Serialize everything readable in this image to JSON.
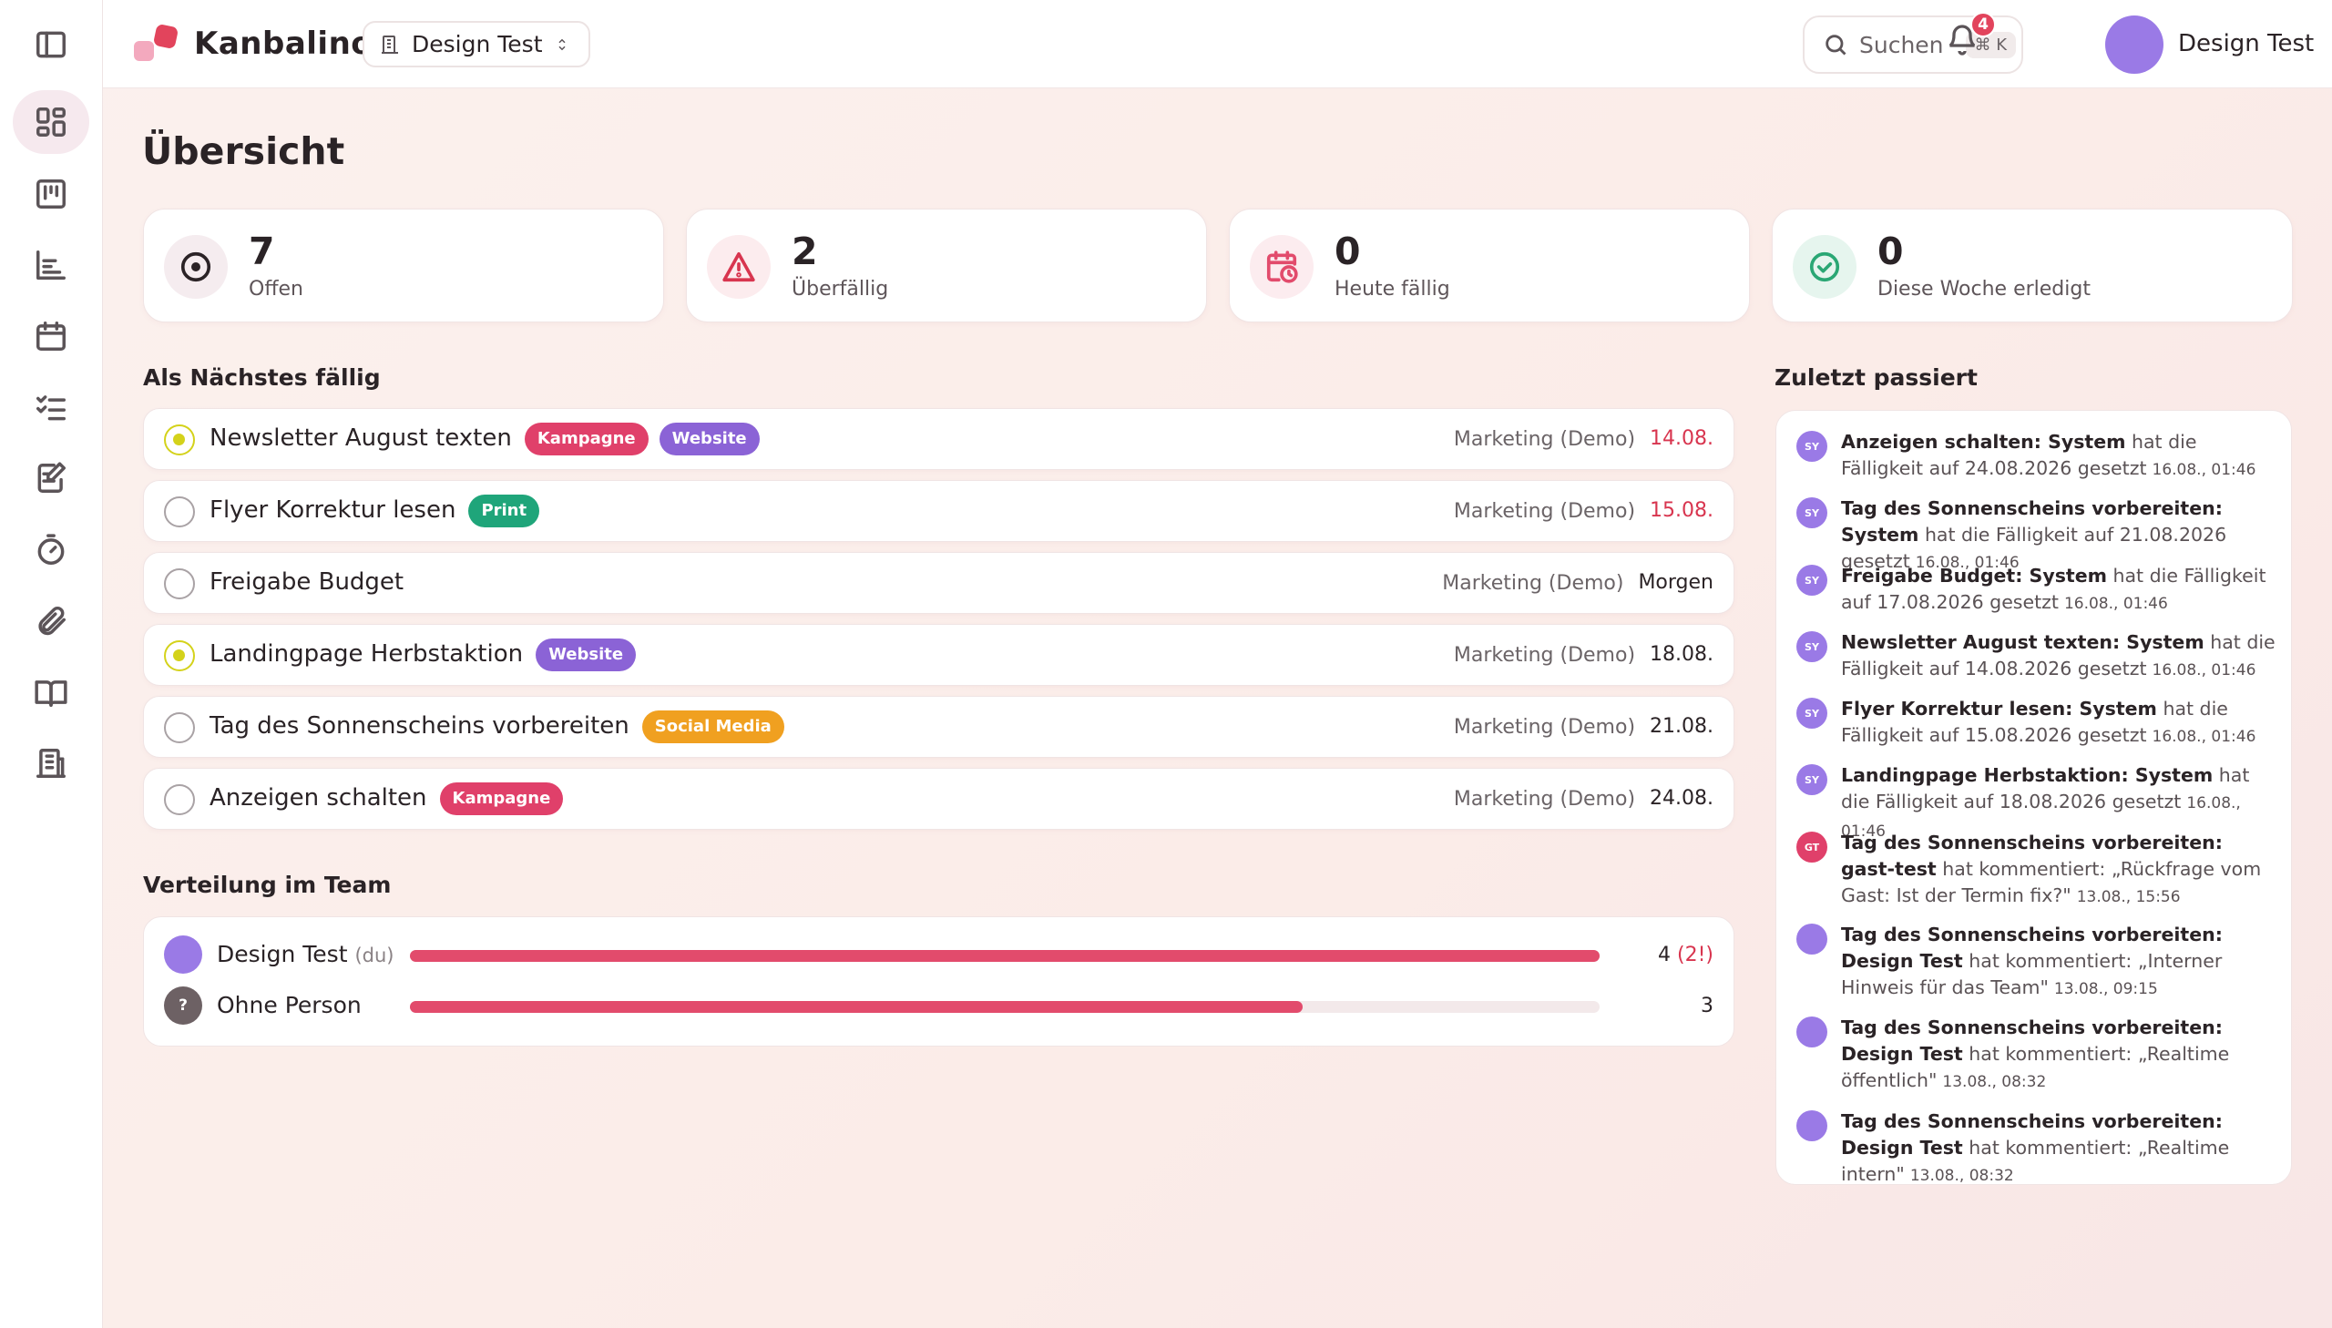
{
  "app": {
    "name": "Kanbalino"
  },
  "workspace": {
    "name": "Design Test"
  },
  "search": {
    "label": "Suchen",
    "shortcut": "⌘ K"
  },
  "notifications": {
    "count": "4"
  },
  "user": {
    "name": "Design Test",
    "avatar_color": "#9a7ae6"
  },
  "sidebar": {
    "items": [
      {
        "icon": "dashboard-icon",
        "active": true
      },
      {
        "icon": "board-icon"
      },
      {
        "icon": "chart-icon"
      },
      {
        "icon": "calendar-icon"
      },
      {
        "icon": "checklist-icon"
      },
      {
        "icon": "notes-icon"
      },
      {
        "icon": "timer-icon"
      },
      {
        "icon": "attachment-icon"
      },
      {
        "icon": "book-icon"
      },
      {
        "icon": "building-icon"
      }
    ]
  },
  "page": {
    "title": "Übersicht"
  },
  "stats": [
    {
      "value": "7",
      "label": "Offen",
      "icon": "target-icon",
      "color": "#2b2326",
      "bg": "#f5ecef"
    },
    {
      "value": "2",
      "label": "Überfällig",
      "icon": "warning-icon",
      "color": "#d8354f",
      "bg": "#fcecee"
    },
    {
      "value": "0",
      "label": "Heute fällig",
      "icon": "calendar-clock-icon",
      "color": "#e24b6c",
      "bg": "#fcecef"
    },
    {
      "value": "0",
      "label": "Diese Woche erledigt",
      "icon": "check-circle-icon",
      "color": "#2aa774",
      "bg": "#e6f5ee"
    }
  ],
  "next_due": {
    "title": "Als Nächstes fällig",
    "tasks": [
      {
        "title": "Newsletter August texten",
        "status": "progress",
        "tags": [
          {
            "label": "Kampagne",
            "color": "#e0406a"
          },
          {
            "label": "Website",
            "color": "#8b63d6"
          }
        ],
        "project": "Marketing (Demo)",
        "due": "14.08.",
        "overdue": true
      },
      {
        "title": "Flyer Korrektur lesen",
        "status": "open",
        "tags": [
          {
            "label": "Print",
            "color": "#1fa57a"
          }
        ],
        "project": "Marketing (Demo)",
        "due": "15.08.",
        "overdue": true
      },
      {
        "title": "Freigabe Budget",
        "status": "open",
        "tags": [],
        "project": "Marketing (Demo)",
        "due": "Morgen",
        "overdue": false
      },
      {
        "title": "Landingpage Herbstaktion",
        "status": "progress",
        "tags": [
          {
            "label": "Website",
            "color": "#8b63d6"
          }
        ],
        "project": "Marketing (Demo)",
        "due": "18.08.",
        "overdue": false
      },
      {
        "title": "Tag des Sonnenscheins vorbereiten",
        "status": "open",
        "tags": [
          {
            "label": "Social Media",
            "color": "#f0a020"
          }
        ],
        "project": "Marketing (Demo)",
        "due": "21.08.",
        "overdue": false
      },
      {
        "title": "Anzeigen schalten",
        "status": "open",
        "tags": [
          {
            "label": "Kampagne",
            "color": "#e0406a"
          }
        ],
        "project": "Marketing (Demo)",
        "due": "24.08.",
        "overdue": false
      }
    ]
  },
  "team": {
    "title": "Verteilung im Team",
    "members": [
      {
        "name": "Design Test",
        "suffix": "(du)",
        "avatar_label": "",
        "avatar_color": "#9a7ae6",
        "count": "4",
        "overdue": "(2!)",
        "share": 1.0
      },
      {
        "name": "Ohne Person",
        "suffix": "",
        "avatar_label": "?",
        "avatar_color": "#6d6164",
        "count": "3",
        "overdue": "",
        "share": 0.75
      }
    ]
  },
  "activity": {
    "title": "Zuletzt passiert",
    "items": [
      {
        "avatar": "SY",
        "color": "#9a7ae6",
        "subject": "Anzeigen schalten: System",
        "text": "hat die Fälligkeit auf 24.08.2026 gesetzt",
        "time": "16.08., 01:46"
      },
      {
        "avatar": "SY",
        "color": "#9a7ae6",
        "subject": "Tag des Sonnenscheins vorbereiten: System",
        "text": "hat die Fälligkeit auf 21.08.2026 gesetzt",
        "time": "16.08., 01:46"
      },
      {
        "avatar": "SY",
        "color": "#9a7ae6",
        "subject": "Freigabe Budget: System",
        "text": "hat die Fälligkeit auf 17.08.2026 gesetzt",
        "time": "16.08., 01:46"
      },
      {
        "avatar": "SY",
        "color": "#9a7ae6",
        "subject": "Newsletter August texten: System",
        "text": "hat die Fälligkeit auf 14.08.2026 gesetzt",
        "time": "16.08., 01:46"
      },
      {
        "avatar": "SY",
        "color": "#9a7ae6",
        "subject": "Flyer Korrektur lesen: System",
        "text": "hat die Fälligkeit auf 15.08.2026 gesetzt",
        "time": "16.08., 01:46"
      },
      {
        "avatar": "SY",
        "color": "#9a7ae6",
        "subject": "Landingpage Herbstaktion: System",
        "text": "hat die Fälligkeit auf 18.08.2026 gesetzt",
        "time": "16.08., 01:46"
      },
      {
        "avatar": "GT",
        "color": "#e0406a",
        "subject": "Tag des Sonnenscheins vorbereiten: gast-test",
        "text": "hat kommentiert: „Rückfrage vom Gast: Ist der Termin fix?\"",
        "time": "13.08., 15:56"
      },
      {
        "avatar": "",
        "color": "#9a7ae6",
        "subject": "Tag des Sonnenscheins vorbereiten: Design Test",
        "text": "hat kommentiert: „Interner Hinweis für das Team\"",
        "time": "13.08., 09:15"
      },
      {
        "avatar": "",
        "color": "#9a7ae6",
        "subject": "Tag des Sonnenscheins vorbereiten: Design Test",
        "text": "hat kommentiert: „Realtime öffentlich\"",
        "time": "13.08., 08:32"
      },
      {
        "avatar": "",
        "color": "#9a7ae6",
        "subject": "Tag des Sonnenscheins vorbereiten: Design Test",
        "text": "hat kommentiert: „Realtime intern\"",
        "time": "13.08., 08:32"
      }
    ]
  }
}
